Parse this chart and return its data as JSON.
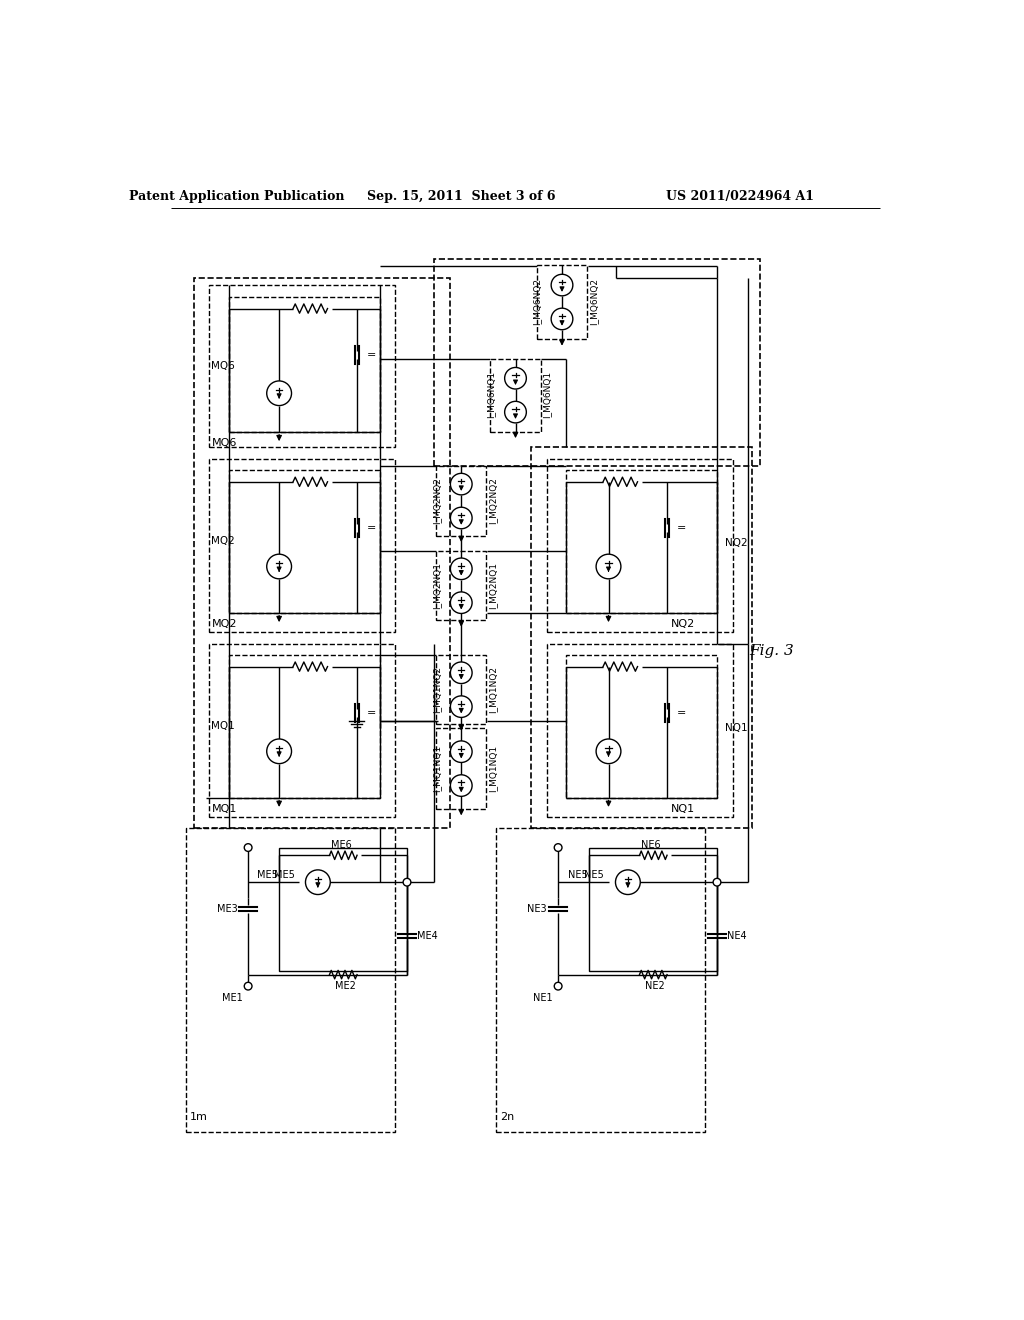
{
  "header_left": "Patent Application Publication",
  "header_mid": "Sep. 15, 2011  Sheet 3 of 6",
  "header_right": "US 2011/0224964 A1",
  "fig_label": "Fig. 3",
  "bg": "#ffffff"
}
